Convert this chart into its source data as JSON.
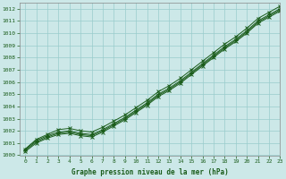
{
  "title": "Graphe pression niveau de la mer (hPa)",
  "xlim": [
    -0.5,
    23
  ],
  "ylim": [
    1000,
    1012.5
  ],
  "yticks": [
    1000,
    1001,
    1002,
    1003,
    1004,
    1005,
    1006,
    1007,
    1008,
    1009,
    1010,
    1011,
    1012
  ],
  "xticks": [
    0,
    1,
    2,
    3,
    4,
    5,
    6,
    7,
    8,
    9,
    10,
    11,
    12,
    13,
    14,
    15,
    16,
    17,
    18,
    19,
    20,
    21,
    22,
    23
  ],
  "bg_color": "#cce8e8",
  "grid_color": "#99cccc",
  "line_color": "#1a5c1a",
  "series": [
    [
      1000.5,
      1001.2,
      1001.6,
      1001.9,
      1002.0,
      1001.8,
      1001.7,
      1002.1,
      1002.6,
      1003.1,
      1003.7,
      1004.3,
      1005.0,
      1005.5,
      1006.1,
      1006.8,
      1007.5,
      1008.2,
      1008.9,
      1009.5,
      1010.2,
      1011.0,
      1011.5,
      1012.0
    ],
    [
      1000.5,
      1001.3,
      1001.7,
      1002.1,
      1002.2,
      1002.0,
      1001.9,
      1002.3,
      1002.8,
      1003.3,
      1003.9,
      1004.5,
      1005.2,
      1005.7,
      1006.3,
      1007.0,
      1007.7,
      1008.4,
      1009.1,
      1009.7,
      1010.4,
      1011.2,
      1011.7,
      1012.2
    ],
    [
      1000.4,
      1001.1,
      1001.5,
      1001.8,
      1001.9,
      1001.7,
      1001.6,
      1002.0,
      1002.5,
      1003.0,
      1003.6,
      1004.2,
      1004.9,
      1005.4,
      1006.0,
      1006.7,
      1007.4,
      1008.1,
      1008.8,
      1009.4,
      1010.1,
      1010.9,
      1011.4,
      1011.9
    ],
    [
      1000.3,
      1001.0,
      1001.4,
      1001.7,
      1001.8,
      1001.6,
      1001.5,
      1001.9,
      1002.4,
      1002.9,
      1003.5,
      1004.1,
      1004.8,
      1005.3,
      1005.9,
      1006.6,
      1007.3,
      1008.0,
      1008.7,
      1009.3,
      1010.0,
      1010.8,
      1011.3,
      1011.8
    ]
  ]
}
